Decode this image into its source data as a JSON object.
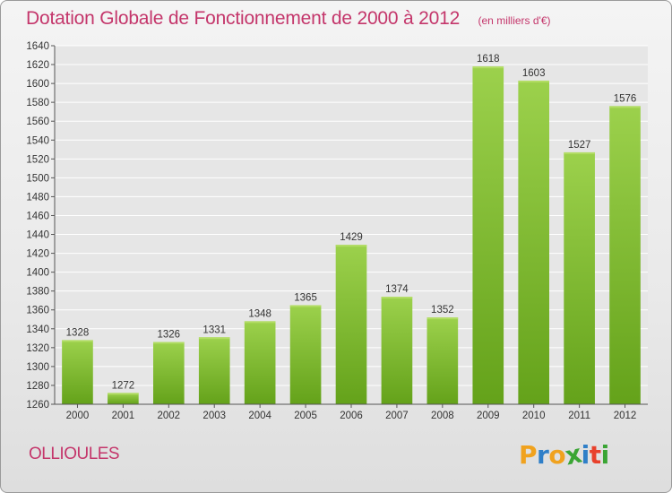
{
  "header": {
    "title": "Dotation Globale de Fonctionnement de 2000 à 2012",
    "subtitle": "(en milliers d'€)"
  },
  "footer": {
    "commune": "OLLIOULES",
    "logo_text": "Proxiti"
  },
  "colors": {
    "accent": "#c4366b",
    "bar_light": "#9cd14c",
    "bar_dark": "#64a21a",
    "grid": "#ffffff",
    "logo_letters": [
      "#f0a21e",
      "#2f7fc8",
      "#f0a21e",
      "#3aa534",
      "#2f7fc8",
      "#e8412c",
      "#3aa534"
    ]
  },
  "chart_data": {
    "type": "bar",
    "categories": [
      "2000",
      "2001",
      "2002",
      "2003",
      "2004",
      "2005",
      "2006",
      "2007",
      "2008",
      "2009",
      "2010",
      "2011",
      "2012"
    ],
    "values": [
      1328,
      1272,
      1326,
      1331,
      1348,
      1365,
      1429,
      1374,
      1352,
      1618,
      1603,
      1527,
      1576
    ],
    "ylim": [
      1260,
      1640
    ],
    "yticks": [
      1260,
      1280,
      1300,
      1320,
      1340,
      1360,
      1380,
      1400,
      1420,
      1440,
      1460,
      1480,
      1500,
      1520,
      1540,
      1560,
      1580,
      1600,
      1620,
      1640
    ],
    "grid": true,
    "title": "Dotation Globale de Fonctionnement de 2000 à 2012",
    "xlabel": "",
    "ylabel": ""
  }
}
